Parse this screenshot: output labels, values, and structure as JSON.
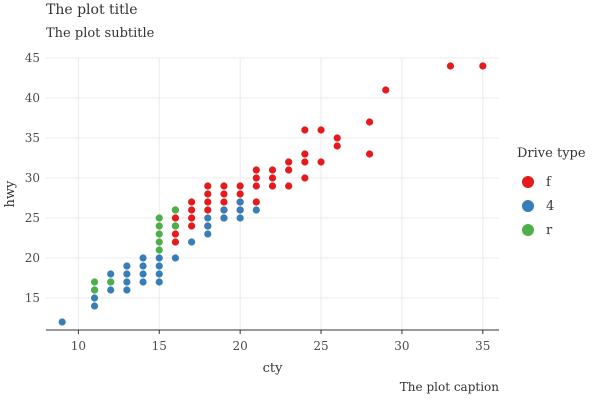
{
  "chart_data": {
    "type": "scatter",
    "title": "The plot title",
    "subtitle": "The plot subtitle",
    "caption": "The plot caption",
    "xlabel": "cty",
    "ylabel": "hwy",
    "xlim": [
      8,
      36
    ],
    "ylim": [
      11,
      45
    ],
    "xticks": [
      10,
      15,
      20,
      25,
      30,
      35
    ],
    "yticks": [
      15,
      20,
      25,
      30,
      35,
      40,
      45
    ],
    "grid": true,
    "legend": {
      "title": "Drive type",
      "placement": "right",
      "entries": [
        {
          "label": "f",
          "color": "#e41a1c"
        },
        {
          "label": "4",
          "color": "#377eb8"
        },
        {
          "label": "r",
          "color": "#4daf4a"
        }
      ]
    },
    "series": [
      {
        "name": "f",
        "color": "#e41a1c",
        "points": [
          [
            16,
            22
          ],
          [
            16,
            23
          ],
          [
            16,
            24
          ],
          [
            16,
            25
          ],
          [
            16,
            26
          ],
          [
            17,
            24
          ],
          [
            17,
            25
          ],
          [
            17,
            26
          ],
          [
            17,
            27
          ],
          [
            18,
            24
          ],
          [
            18,
            26
          ],
          [
            18,
            27
          ],
          [
            18,
            28
          ],
          [
            18,
            29
          ],
          [
            19,
            25
          ],
          [
            19,
            26
          ],
          [
            19,
            27
          ],
          [
            19,
            28
          ],
          [
            19,
            29
          ],
          [
            20,
            26
          ],
          [
            20,
            27
          ],
          [
            20,
            28
          ],
          [
            20,
            29
          ],
          [
            21,
            27
          ],
          [
            21,
            29
          ],
          [
            21,
            30
          ],
          [
            21,
            31
          ],
          [
            22,
            29
          ],
          [
            22,
            30
          ],
          [
            22,
            31
          ],
          [
            23,
            29
          ],
          [
            23,
            31
          ],
          [
            23,
            32
          ],
          [
            24,
            30
          ],
          [
            24,
            32
          ],
          [
            24,
            33
          ],
          [
            24,
            36
          ],
          [
            25,
            32
          ],
          [
            25,
            36
          ],
          [
            26,
            34
          ],
          [
            26,
            35
          ],
          [
            28,
            33
          ],
          [
            28,
            37
          ],
          [
            29,
            41
          ],
          [
            33,
            44
          ],
          [
            35,
            44
          ]
        ]
      },
      {
        "name": "4",
        "color": "#377eb8",
        "points": [
          [
            9,
            12
          ],
          [
            11,
            14
          ],
          [
            11,
            15
          ],
          [
            11,
            16
          ],
          [
            12,
            16
          ],
          [
            12,
            17
          ],
          [
            12,
            18
          ],
          [
            13,
            16
          ],
          [
            13,
            17
          ],
          [
            13,
            18
          ],
          [
            13,
            19
          ],
          [
            14,
            17
          ],
          [
            14,
            18
          ],
          [
            14,
            19
          ],
          [
            14,
            20
          ],
          [
            15,
            17
          ],
          [
            15,
            18
          ],
          [
            15,
            19
          ],
          [
            15,
            20
          ],
          [
            16,
            20
          ],
          [
            17,
            22
          ],
          [
            18,
            23
          ],
          [
            18,
            24
          ],
          [
            18,
            25
          ],
          [
            19,
            25
          ],
          [
            19,
            26
          ],
          [
            20,
            25
          ],
          [
            20,
            26
          ],
          [
            20,
            27
          ],
          [
            21,
            26
          ]
        ]
      },
      {
        "name": "r",
        "color": "#4daf4a",
        "points": [
          [
            11,
            16
          ],
          [
            11,
            17
          ],
          [
            12,
            17
          ],
          [
            15,
            21
          ],
          [
            15,
            22
          ],
          [
            15,
            23
          ],
          [
            15,
            24
          ],
          [
            15,
            25
          ],
          [
            16,
            24
          ],
          [
            16,
            26
          ]
        ]
      }
    ]
  }
}
